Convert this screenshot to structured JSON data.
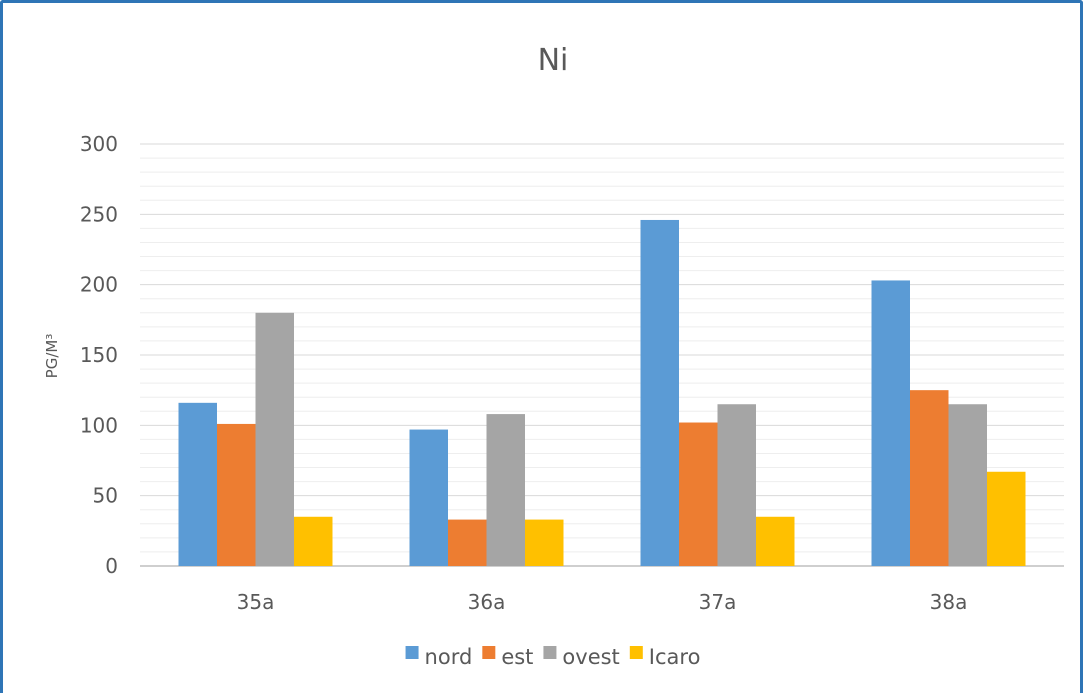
{
  "chart_data": {
    "type": "bar",
    "title": "Ni",
    "xlabel": "",
    "ylabel": "PG/M³",
    "ylim": [
      0,
      300
    ],
    "yticks": [
      0,
      50,
      100,
      150,
      200,
      250,
      300
    ],
    "grid": true,
    "minor_grid": true,
    "legend_position": "bottom",
    "categories": [
      "35a",
      "36a",
      "37a",
      "38a"
    ],
    "series": [
      {
        "name": "nord",
        "color": "#5b9bd5",
        "values": [
          116,
          97,
          246,
          203
        ]
      },
      {
        "name": "est",
        "color": "#ed7d31",
        "values": [
          101,
          33,
          102,
          125
        ]
      },
      {
        "name": "ovest",
        "color": "#a5a5a5",
        "values": [
          180,
          108,
          115,
          115
        ]
      },
      {
        "name": "Icaro",
        "color": "#ffc000",
        "values": [
          35,
          33,
          35,
          67
        ]
      }
    ]
  },
  "colors": {
    "frame_border": "#2e75b6",
    "gridline": "#d9d9d9",
    "axis_line": "#bfbfbf",
    "text": "#595959"
  }
}
